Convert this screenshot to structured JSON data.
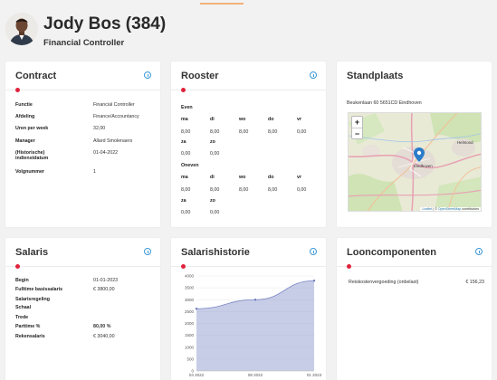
{
  "header": {
    "name": "Jody Bos (384)",
    "role": "Financial Controller"
  },
  "contract": {
    "title": "Contract",
    "rows": [
      {
        "key": "Functie",
        "value": "Financial Controller"
      },
      {
        "key": "Afdeling",
        "value": "Finance/Accountancy"
      },
      {
        "key": "Uren per week",
        "value": "32,00"
      },
      {
        "key": "Manager",
        "value": "Allard Smolenaers"
      },
      {
        "key": "(Historische) indienstdatum",
        "value": "01-04-2022"
      },
      {
        "key": "Volgnummer",
        "value": "1"
      }
    ]
  },
  "rooster": {
    "title": "Rooster",
    "even_label": "Even",
    "odd_label": "Oneven",
    "days_row1": [
      "ma",
      "di",
      "wo",
      "do",
      "vr"
    ],
    "days_row2": [
      "za",
      "zo"
    ],
    "even_values_row1": [
      "8,00",
      "8,00",
      "8,00",
      "8,00",
      "0,00"
    ],
    "even_values_row2": [
      "0,00",
      "0,00"
    ],
    "odd_values_row1": [
      "8,00",
      "8,00",
      "8,00",
      "8,00",
      "0,00"
    ],
    "odd_values_row2": [
      "0,00",
      "0,00"
    ]
  },
  "standplaats": {
    "title": "Standplaats",
    "address": "Beukenlaan 60 5651CD Eindhoven",
    "zoom_in": "+",
    "zoom_out": "−",
    "map_labels": {
      "city": "Eindhoven",
      "helmond": "Helmond"
    },
    "attribution": {
      "leaflet": "Leaflet",
      "sep": " | © ",
      "osm": "OpenStreetMap",
      "suffix": " contributors"
    }
  },
  "salaris": {
    "title": "Salaris",
    "rows": [
      {
        "key": "Begin",
        "value": "01-01-2023",
        "bold": false
      },
      {
        "key": "Fulltime basissalaris",
        "value": "€ 3800,00",
        "bold": false
      },
      {
        "key": "Salarisregeling",
        "value": "",
        "bold": false
      },
      {
        "key": "Schaal",
        "value": "",
        "bold": false
      },
      {
        "key": "Trede",
        "value": "",
        "bold": false
      },
      {
        "key": "Parttime %",
        "value": "80,00 %",
        "bold": true
      },
      {
        "key": "Rekensalaris",
        "value": "€ 3040,00",
        "bold": false
      }
    ]
  },
  "salarishistorie": {
    "title": "Salarishistorie"
  },
  "chart_data": {
    "type": "area",
    "categories": [
      "04 2022",
      "08 2022",
      "01 2023"
    ],
    "values": [
      2620,
      3000,
      3800
    ],
    "ylim": [
      0,
      4000
    ],
    "yticks": [
      0,
      500,
      1000,
      1500,
      2000,
      2500,
      3000,
      3500,
      4000
    ],
    "grid": true,
    "color": "#9aa4d4"
  },
  "looncomponenten": {
    "title": "Looncomponenten",
    "rows": [
      {
        "key": "Reiskostenvergoeding (onbelast)",
        "value": "€ 156,23"
      }
    ]
  },
  "colors": {
    "accent_red": "#e0233d",
    "info_blue": "#3a98d8",
    "top_accent": "#f2b27a"
  }
}
